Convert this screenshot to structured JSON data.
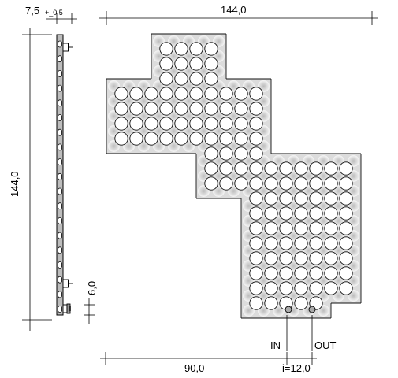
{
  "dimensions": {
    "depth": {
      "value": "7,5",
      "tolerance": "+_0,5"
    },
    "height": "144,0",
    "width": "144,0",
    "port_offset": "6,0",
    "left_span": "90,0",
    "spacing": "i=12,0"
  },
  "labels": {
    "inlet": "IN",
    "outlet": "OUT"
  },
  "colors": {
    "panel_fill": "#dcdcdc",
    "dot_core": "#b9b9b9",
    "lines": "#000000",
    "side_fill": "#bdbdbd"
  }
}
